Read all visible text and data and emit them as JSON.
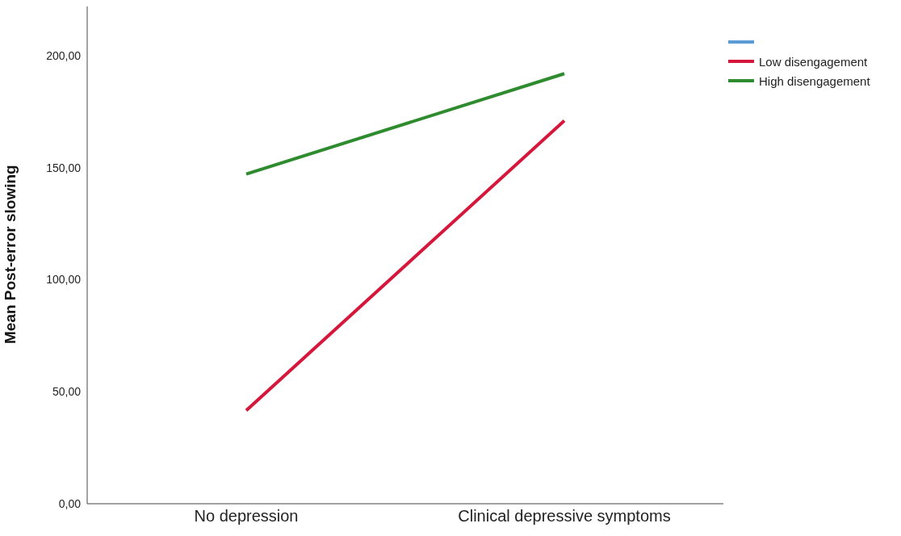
{
  "chart_data": {
    "type": "line",
    "ylabel": "Mean Post-error slowing",
    "categories": [
      "No depression",
      "Clinical depressive symptoms"
    ],
    "series": [
      {
        "color": "#5b9bd5",
        "values": [
          null,
          null
        ]
      },
      {
        "name": "Low disengagement",
        "color": "#d6173c",
        "values": [
          41.6,
          171
        ]
      },
      {
        "name": "High disengagement",
        "color": "#2e8b2e",
        "values": [
          147.2,
          192
        ]
      }
    ],
    "ylim": [
      0,
      222
    ],
    "yticks": [
      {
        "value": 0,
        "label": "0,00"
      },
      {
        "value": 50,
        "label": "50,00"
      },
      {
        "value": 100,
        "label": "100,00"
      },
      {
        "value": 150,
        "label": "150,00"
      },
      {
        "value": 200,
        "label": "200,00"
      }
    ],
    "grid": false,
    "legend": "top right",
    "marker": "none",
    "line_style": "solid"
  }
}
